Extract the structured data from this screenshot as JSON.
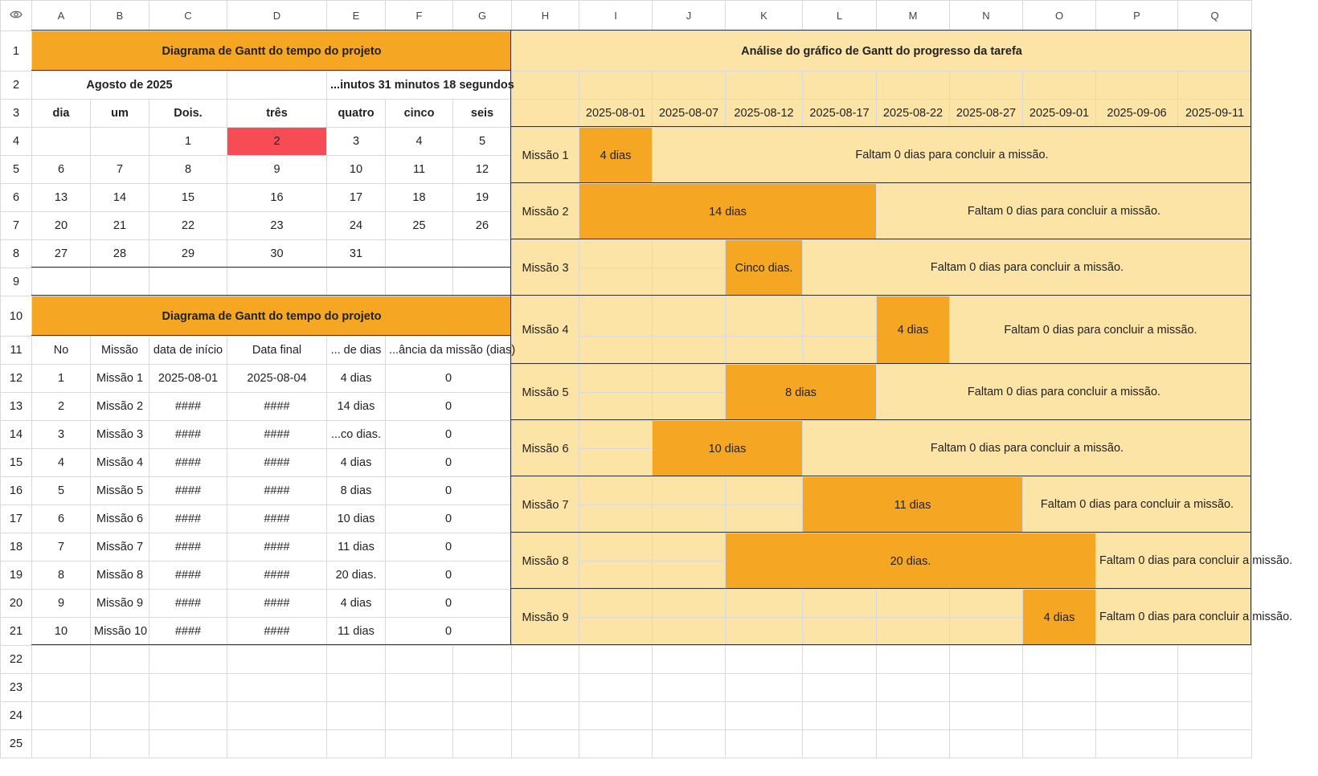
{
  "columns": [
    "A",
    "B",
    "C",
    "D",
    "E",
    "F",
    "G",
    "H",
    "I",
    "J",
    "K",
    "L",
    "M",
    "N",
    "O",
    "P",
    "Q"
  ],
  "rows": [
    "1",
    "2",
    "3",
    "4",
    "5",
    "6",
    "7",
    "8",
    "9",
    "10",
    "11",
    "12",
    "13",
    "14",
    "15",
    "16",
    "17",
    "18",
    "19",
    "20",
    "21",
    "22",
    "23",
    "24",
    "25"
  ],
  "calendar": {
    "title": "Diagrama de Gantt do tempo do projeto",
    "month": "Agosto de 2025",
    "countdown": "...inutos 31 minutos 18 segundos",
    "weekdays": [
      "dia",
      "um",
      "Dois.",
      "três",
      "quatro",
      "cinco",
      "seis"
    ],
    "weeks": [
      [
        "",
        "",
        "1",
        "2",
        "3",
        "4",
        "5"
      ],
      [
        "6",
        "7",
        "8",
        "9",
        "10",
        "11",
        "12"
      ],
      [
        "13",
        "14",
        "15",
        "16",
        "17",
        "18",
        "19"
      ],
      [
        "20",
        "21",
        "22",
        "23",
        "24",
        "25",
        "26"
      ],
      [
        "27",
        "28",
        "29",
        "30",
        "31",
        "",
        ""
      ]
    ],
    "today": "2",
    "highlight_color": "#f74b56"
  },
  "tasks_table": {
    "title": "Diagrama de Gantt do tempo do projeto",
    "headers": [
      "No",
      "Missão",
      "data de início",
      "Data final",
      "... de dias",
      "...ância da missão (dias)"
    ],
    "rows": [
      [
        "1",
        "Missão 1",
        "2025-08-01",
        "2025-08-04",
        "4 dias",
        "0"
      ],
      [
        "2",
        "Missão 2",
        "####",
        "####",
        "14 dias",
        "0"
      ],
      [
        "3",
        "Missão 3",
        "####",
        "####",
        "...co dias.",
        "0"
      ],
      [
        "4",
        "Missão 4",
        "####",
        "####",
        "4 dias",
        "0"
      ],
      [
        "5",
        "Missão 5",
        "####",
        "####",
        "8 dias",
        "0"
      ],
      [
        "6",
        "Missão 6",
        "####",
        "####",
        "10 dias",
        "0"
      ],
      [
        "7",
        "Missão 7",
        "####",
        "####",
        "11 dias",
        "0"
      ],
      [
        "8",
        "Missão 8",
        "####",
        "####",
        "20 dias.",
        "0"
      ],
      [
        "9",
        "Missão 9",
        "####",
        "####",
        "4 dias",
        "0"
      ],
      [
        "10",
        "Missão 10",
        "####",
        "####",
        "11 dias",
        "0"
      ]
    ]
  },
  "gantt": {
    "title": "Análise do gráfico de Gantt do progresso da tarefa",
    "dates": [
      "2025-08-01",
      "2025-08-07",
      "2025-08-12",
      "2025-08-17",
      "2025-08-22",
      "2025-08-27",
      "2025-09-01",
      "2025-09-06",
      "2025-09-11"
    ],
    "bar_color": "#f5a623",
    "bg_color": "#fce3a6",
    "tasks": [
      {
        "name": "Missão 1",
        "start_col": 0,
        "span": 1,
        "label": "4 dias",
        "remaining": "Faltam 0 dias para concluir a missão."
      },
      {
        "name": "Missão 2",
        "start_col": 0,
        "span": 4,
        "label": "14 dias",
        "remaining": "Faltam 0 dias para concluir a missão."
      },
      {
        "name": "Missão 3",
        "start_col": 2,
        "span": 1,
        "label": "Cinco dias.",
        "remaining": "Faltam 0 dias para concluir a missão."
      },
      {
        "name": "Missão 4",
        "start_col": 4,
        "span": 1,
        "label": "4 dias",
        "remaining": "Faltam 0 dias para concluir a missão."
      },
      {
        "name": "Missão 5",
        "start_col": 2,
        "span": 2,
        "label": "8 dias",
        "remaining": "Faltam 0 dias para concluir a missão."
      },
      {
        "name": "Missão 6",
        "start_col": 1,
        "span": 2,
        "label": "10 dias",
        "remaining": "Faltam 0 dias para concluir a missão."
      },
      {
        "name": "Missão 7",
        "start_col": 3,
        "span": 3,
        "label": "11 dias",
        "remaining": "Faltam 0 dias para concluir a missão."
      },
      {
        "name": "Missão 8",
        "start_col": 2,
        "span": 5,
        "label": "20 dias.",
        "remaining": "Faltam 0 dias para concluir a missão."
      },
      {
        "name": "Missão 9",
        "start_col": 6,
        "span": 1,
        "label": "4 dias",
        "remaining": "Faltam 0 dias para concluir a missão."
      }
    ]
  }
}
